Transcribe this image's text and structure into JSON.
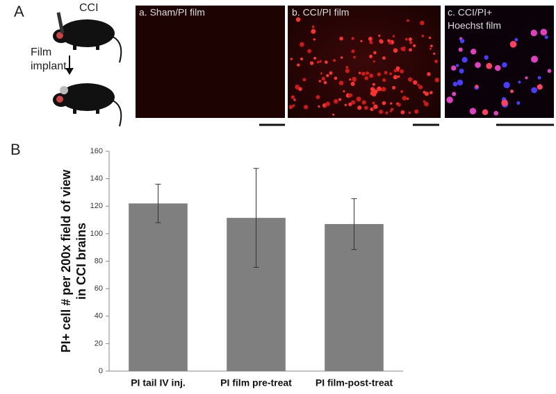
{
  "figure": {
    "panel_a_label": "A",
    "panel_b_label": "B",
    "mouse_labels": {
      "top": "CCI",
      "bottom": [
        "Film",
        "implant"
      ]
    },
    "images": [
      {
        "title": [
          "a. Sham/PI film"
        ]
      },
      {
        "title": [
          "b. CCI/PI film"
        ]
      },
      {
        "title": [
          "c. CCI/PI+",
          "Hoechst film"
        ]
      }
    ]
  },
  "chart_data": {
    "type": "bar",
    "ylabel": [
      "PI+ cell # per 200x field of view",
      "in CCI brains"
    ],
    "categories": [
      "PI tail IV inj.",
      "PI film pre-treat",
      "PI film-post-treat"
    ],
    "values": [
      122,
      111.5,
      107
    ],
    "errors": [
      14,
      36,
      18.5
    ],
    "color": "#7f7f7f",
    "ylim": [
      0,
      160
    ],
    "yticks": [
      0,
      20,
      40,
      60,
      80,
      100,
      120,
      140,
      160
    ],
    "grid": false
  }
}
